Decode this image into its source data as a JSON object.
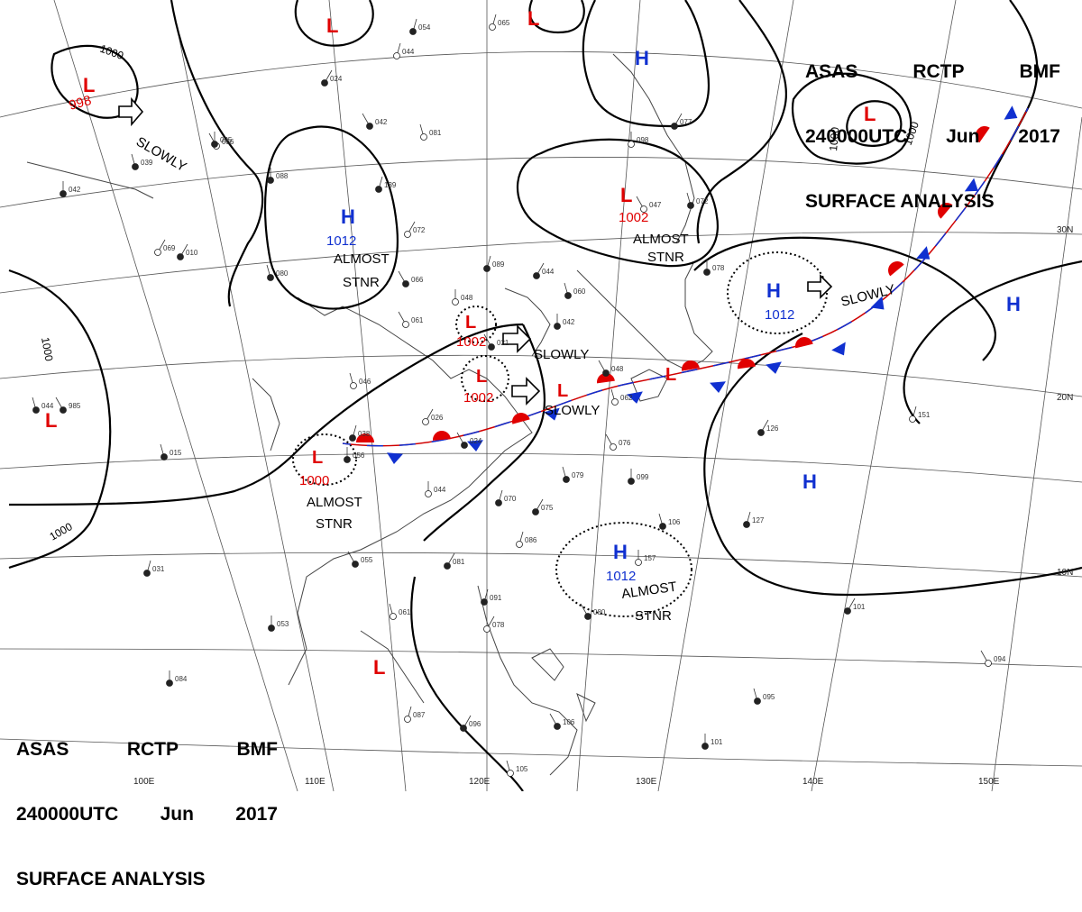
{
  "header": {
    "line1": [
      "ASAS",
      "RCTP",
      "BMF"
    ],
    "line2": [
      "240000UTC",
      "Jun",
      "2017"
    ],
    "line3": "SURFACE ANALYSIS"
  },
  "colors": {
    "low": "#e00000",
    "high": "#1030d0",
    "warm_front": "#e00000",
    "cold_front": "#1030d0",
    "coast": "#444444",
    "grid": "#555555"
  },
  "grid_labels": {
    "lat": [
      "30N",
      "20N",
      "10N"
    ],
    "lon": [
      "100E",
      "110E",
      "120E",
      "130E",
      "140E",
      "150E"
    ]
  },
  "isobar_labels": [
    "1000",
    "1000",
    "1000",
    "1000",
    "1000"
  ],
  "systems": [
    {
      "id": "low-nw",
      "type": "L",
      "pressure": "998"
    },
    {
      "id": "low-n1",
      "type": "L",
      "pressure": ""
    },
    {
      "id": "low-n2",
      "type": "L",
      "pressure": ""
    },
    {
      "id": "high-ne",
      "type": "H",
      "pressure": ""
    },
    {
      "id": "low-ne",
      "type": "L",
      "pressure": ""
    },
    {
      "id": "high-mongolia",
      "type": "H",
      "pressure": "1012"
    },
    {
      "id": "low-korea",
      "type": "L",
      "pressure": "1002"
    },
    {
      "id": "low-yellowsea",
      "type": "L",
      "pressure": "1002"
    },
    {
      "id": "low-eastchina",
      "type": "L",
      "pressure": "1002"
    },
    {
      "id": "low-front",
      "type": "L",
      "pressure": ""
    },
    {
      "id": "low-front2",
      "type": "L",
      "pressure": ""
    },
    {
      "id": "low-south-china",
      "type": "L",
      "pressure": "1000"
    },
    {
      "id": "high-pacific",
      "type": "H",
      "pressure": "1012"
    },
    {
      "id": "high-east",
      "type": "H",
      "pressure": ""
    },
    {
      "id": "high-mid-pacific",
      "type": "H",
      "pressure": ""
    },
    {
      "id": "high-philippine",
      "type": "H",
      "pressure": "1012"
    },
    {
      "id": "low-west",
      "type": "L",
      "pressure": ""
    },
    {
      "id": "low-vietnam",
      "type": "L",
      "pressure": ""
    }
  ],
  "movement_notes": [
    "SLOWLY",
    "ALMOST",
    "STNR",
    "SLOWLY",
    "SLOWLY",
    "ALMOST",
    "STNR",
    "SLOWLY",
    "ALMOST",
    "STNR",
    "ALMOST",
    "STNR"
  ],
  "stations": [
    "036",
    "039",
    "042",
    "044",
    "024",
    "042",
    "081",
    "088",
    "139",
    "072",
    "066",
    "080",
    "048",
    "089",
    "044",
    "061",
    "060",
    "042",
    "065",
    "010",
    "021",
    "046",
    "056",
    "038",
    "026",
    "024",
    "015",
    "044",
    "070",
    "075",
    "076",
    "079",
    "099",
    "086",
    "081",
    "055",
    "061",
    "053",
    "091",
    "078",
    "080",
    "106",
    "157",
    "127",
    "101",
    "094",
    "095",
    "101",
    "087",
    "096",
    "106",
    "105",
    "084",
    "031",
    "069",
    "985",
    "044",
    "098",
    "054",
    "077",
    "047",
    "072",
    "078",
    "151",
    "126",
    "048",
    "062",
    "035"
  ]
}
